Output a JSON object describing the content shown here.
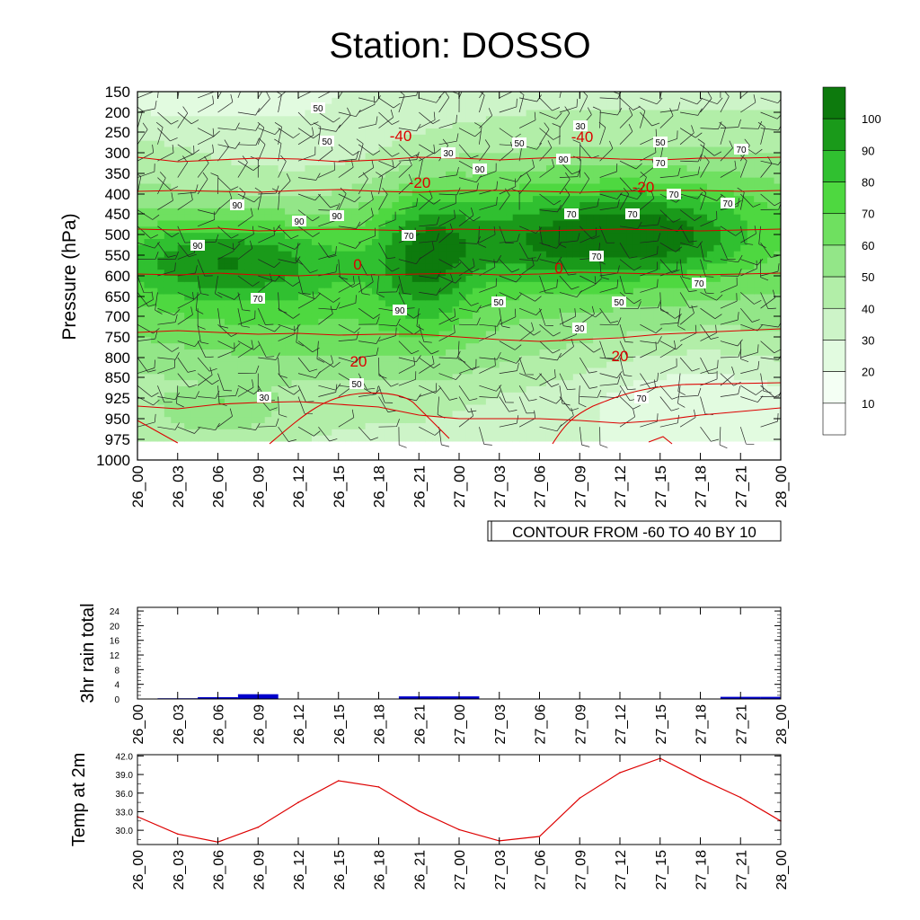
{
  "title": "Station: DOSSO",
  "chart_data": [
    {
      "type": "heatmap",
      "subtype": "contour time-pressure cross-section with wind barbs",
      "ylabel": "Pressure (hPa)",
      "y_axis_reversed": true,
      "y_ticks": [
        "150",
        "200",
        "250",
        "300",
        "350",
        "400",
        "450",
        "500",
        "550",
        "600",
        "650",
        "700",
        "750",
        "800",
        "850",
        "925",
        "950",
        "975",
        "1000"
      ],
      "x_ticks": [
        "26_00",
        "26_03",
        "26_06",
        "26_09",
        "26_12",
        "26_15",
        "26_18",
        "26_21",
        "27_00",
        "27_03",
        "27_06",
        "27_09",
        "27_12",
        "27_15",
        "27_18",
        "27_21",
        "28_00"
      ],
      "fill_field": "relative humidity (%)",
      "fill_levels": [
        10,
        20,
        30,
        40,
        50,
        60,
        70,
        80,
        90,
        100
      ],
      "fill_colors": [
        "#ffffff",
        "#f4fff4",
        "#e2fbe0",
        "#cdf4c8",
        "#b2eea8",
        "#93e688",
        "#6fe060",
        "#4ed840",
        "#30c030",
        "#1a9a1a",
        "#0d7a0d"
      ],
      "colorbar_labels": [
        "100",
        "90",
        "80",
        "70",
        "60",
        "50",
        "40",
        "30",
        "20",
        "10"
      ],
      "line_field": "temperature (°C)",
      "line_color": "#dd0000",
      "line_labels": [
        "-40",
        "-40",
        "-20",
        "-20",
        "0",
        "0",
        "20",
        "20"
      ],
      "rh_labels": [
        "50",
        "50",
        "50",
        "30",
        "30",
        "50",
        "70",
        "70",
        "90",
        "90",
        "90",
        "90",
        "90",
        "70",
        "70",
        "70",
        "70",
        "70",
        "90",
        "90",
        "70",
        "70",
        "50",
        "50",
        "30",
        "50",
        "70",
        "70",
        "30"
      ],
      "info_label": "CONTOUR FROM -60 TO 40 BY 10",
      "grid": false
    },
    {
      "type": "bar",
      "ylabel": "3hr rain total",
      "yticks": [
        "0",
        "4",
        "8",
        "12",
        "16",
        "20",
        "24"
      ],
      "ylim": [
        0,
        25
      ],
      "categories": [
        "26_00",
        "26_03",
        "26_06",
        "26_09",
        "26_12",
        "26_15",
        "26_18",
        "26_21",
        "27_00",
        "27_03",
        "27_06",
        "27_09",
        "27_12",
        "27_15",
        "27_18",
        "27_21",
        "28_00"
      ],
      "values": [
        0,
        0.2,
        0.5,
        1.3,
        0,
        0,
        0,
        0.7,
        0.7,
        0,
        0,
        0,
        0,
        0,
        0.1,
        0.6,
        0.6
      ],
      "bar_color": "#0000cc"
    },
    {
      "type": "line",
      "ylabel": "Temp at 2m",
      "yticks": [
        "30.0",
        "33.0",
        "36.0",
        "39.0",
        "42.0"
      ],
      "ylim": [
        27.7,
        42.2
      ],
      "categories": [
        "26_00",
        "26_03",
        "26_06",
        "26_09",
        "26_12",
        "26_15",
        "26_18",
        "26_21",
        "27_00",
        "27_03",
        "27_06",
        "27_09",
        "27_12",
        "27_15",
        "27_18",
        "27_21",
        "28_00"
      ],
      "values": [
        32.2,
        29.4,
        28.1,
        30.5,
        34.5,
        38.0,
        37.0,
        33.1,
        30.1,
        28.3,
        29.0,
        35.2,
        39.3,
        41.6,
        38.3,
        35.3,
        31.5
      ],
      "line_color": "#dd0000"
    }
  ]
}
